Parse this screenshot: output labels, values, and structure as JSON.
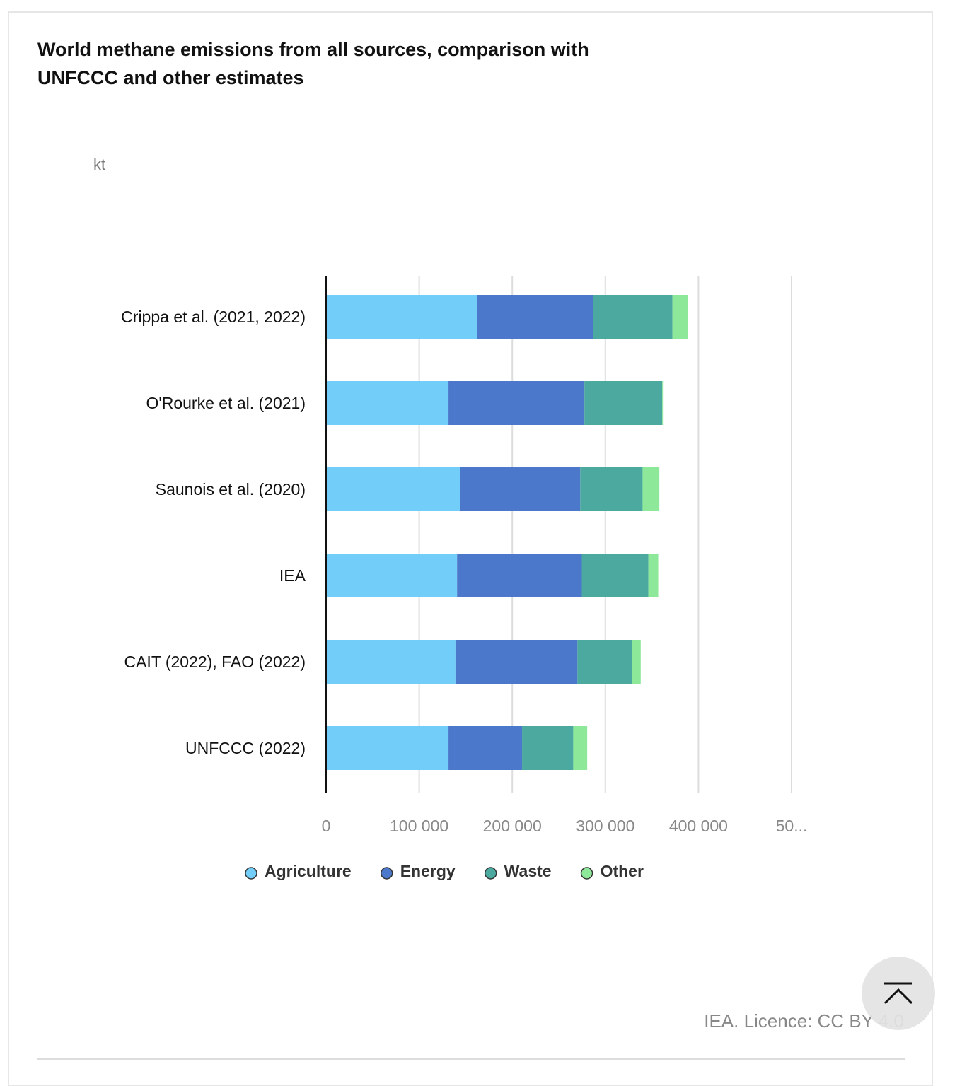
{
  "chart_data": {
    "type": "stacked-barh",
    "title": "World methane emissions from all sources, comparison with UNFCCC and other estimates",
    "unit": "kt",
    "source": "IEA. Licence: CC BY 4.0",
    "categories": [
      "Crippa et al. (2021, 2022)",
      "O'Rourke et al. (2021)",
      "Saunois et al. (2020)",
      "IEA",
      "CAIT (2022), FAO (2022)",
      "UNFCCC (2022)"
    ],
    "series": [
      {
        "name": "Agriculture",
        "color": "#72cef8",
        "values": [
          162000,
          131500,
          143700,
          140700,
          139000,
          131500
        ]
      },
      {
        "name": "Energy",
        "color": "#4c78cc",
        "values": [
          125000,
          146000,
          129300,
          134000,
          131000,
          79000
        ]
      },
      {
        "name": "Waste",
        "color": "#4ca9a0",
        "values": [
          85000,
          83600,
          67000,
          71500,
          59000,
          55000
        ]
      },
      {
        "name": "Other",
        "color": "#8ee89a",
        "values": [
          17000,
          1500,
          18000,
          10600,
          9000,
          15000
        ]
      }
    ],
    "xlim": [
      0,
      500000
    ],
    "xticks": [
      0,
      {
        "value": 100000,
        "label": "100 000"
      },
      {
        "value": 200000,
        "label": "200 000"
      },
      {
        "value": 300000,
        "label": "300 000"
      },
      {
        "value": 400000,
        "label": "400 000"
      },
      {
        "value": 500000,
        "label": "50..."
      }
    ],
    "grid": true
  }
}
